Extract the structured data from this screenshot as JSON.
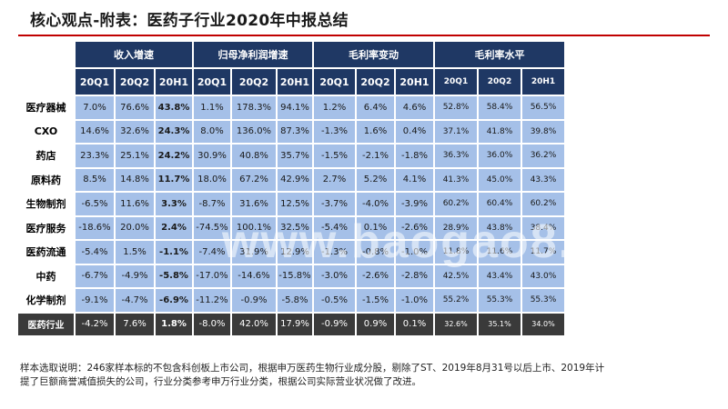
{
  "title": "核心观点-附表：医药子行业2020年中报总结",
  "table": {
    "groups": [
      "收入增速",
      "归母净利润增速",
      "毛利率变动",
      "毛利率水平"
    ],
    "periods": [
      "20Q1",
      "20Q2",
      "20H1"
    ],
    "rows": [
      {
        "name": "医疗器械",
        "values": [
          "7.0%",
          "76.6%",
          "43.8%",
          "1.1%",
          "178.3%",
          "94.1%",
          "1.2%",
          "6.4%",
          "4.6%",
          "52.8%",
          "58.4%",
          "56.5%"
        ]
      },
      {
        "name": "CXO",
        "values": [
          "14.6%",
          "32.6%",
          "24.3%",
          "8.0%",
          "136.0%",
          "87.3%",
          "-1.3%",
          "1.6%",
          "0.4%",
          "37.1%",
          "41.8%",
          "39.8%"
        ]
      },
      {
        "name": "药店",
        "values": [
          "23.3%",
          "25.1%",
          "24.2%",
          "30.9%",
          "40.8%",
          "35.7%",
          "-1.5%",
          "-2.1%",
          "-1.8%",
          "36.3%",
          "36.0%",
          "36.2%"
        ]
      },
      {
        "name": "原料药",
        "values": [
          "8.5%",
          "14.8%",
          "11.7%",
          "18.0%",
          "67.2%",
          "42.9%",
          "2.7%",
          "5.2%",
          "4.1%",
          "41.3%",
          "45.0%",
          "43.3%"
        ]
      },
      {
        "name": "生物制剂",
        "values": [
          "-6.5%",
          "11.6%",
          "3.3%",
          "-8.7%",
          "31.6%",
          "12.5%",
          "-3.7%",
          "-4.0%",
          "-3.9%",
          "60.2%",
          "60.4%",
          "60.2%"
        ]
      },
      {
        "name": "医疗服务",
        "values": [
          "-18.6%",
          "20.0%",
          "2.4%",
          "-74.5%",
          "100.1%",
          "32.5%",
          "-5.4%",
          "0.1%",
          "-2.6%",
          "28.9%",
          "43.8%",
          "38.4%"
        ]
      },
      {
        "name": "医药流通",
        "values": [
          "-5.4%",
          "1.5%",
          "-1.1%",
          "-7.4%",
          "31.9%",
          "12.9%",
          "-1.3%",
          "-0.8%",
          "-1.0%",
          "11.8%",
          "11.6%",
          "11.7%"
        ]
      },
      {
        "name": "中药",
        "values": [
          "-6.7%",
          "-4.9%",
          "-5.8%",
          "-17.0%",
          "-14.6%",
          "-15.8%",
          "-3.0%",
          "-2.6%",
          "-2.8%",
          "42.5%",
          "43.4%",
          "43.0%"
        ]
      },
      {
        "name": "化学制剂",
        "values": [
          "-9.1%",
          "-4.7%",
          "-6.9%",
          "-11.2%",
          "-0.9%",
          "-5.8%",
          "-0.5%",
          "-1.5%",
          "-1.0%",
          "55.2%",
          "55.3%",
          "55.3%"
        ]
      }
    ],
    "total": {
      "name": "医药行业",
      "values": [
        "-4.2%",
        "7.6%",
        "1.8%",
        "-8.0%",
        "42.0%",
        "17.9%",
        "-0.9%",
        "0.9%",
        "0.1%",
        "32.6%",
        "35.1%",
        "34.0%"
      ]
    }
  },
  "watermark": "www.baogao8.com",
  "note": "样本选取说明：246家样本标的不包含科创板上市公司，根据申万医药生物行业成分股，剔除了ST、2019年8月31号以后上市、2019年计提了巨额商誉减值损失的公司，行业分类参考申万行业分类，根据公司实际营业状况做了改进。"
}
